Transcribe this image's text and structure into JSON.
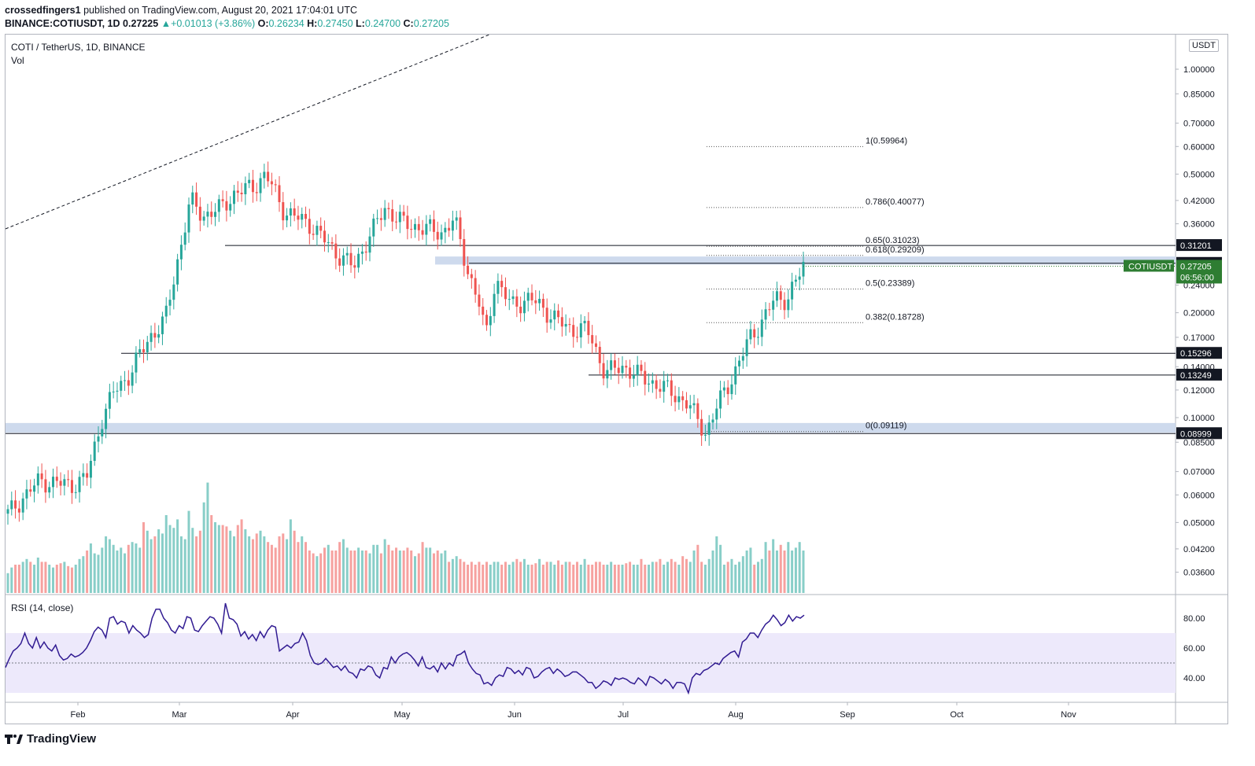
{
  "header": {
    "publisher": "crossedfingers1",
    "published_text": "published on TradingView.com, August 20, 2021 17:04:01 UTC",
    "symbol_line": "BINANCE:COTIUSDT, 1D",
    "last": "0.27225",
    "change": "+0.01013 (+3.86%)",
    "o_label": "O:",
    "o": "0.26234",
    "h_label": "H:",
    "h": "0.27450",
    "l_label": "L:",
    "l": "0.24700",
    "c_label": "C:",
    "c": "0.27205"
  },
  "legend": {
    "title": "COTI / TetherUS, 1D, BINANCE",
    "vol": "Vol",
    "rsi": "RSI (14, close)"
  },
  "currency_badge": "USDT",
  "footer": {
    "brand": "TradingView"
  },
  "colors": {
    "up": "#26a69a",
    "down": "#ef5350",
    "rsi_line": "#311b92",
    "zone": "#c5d3ea",
    "rsi_band": "#ede9fb",
    "price_label": "#2e7d32"
  },
  "chart_data": {
    "type": "candlestick",
    "scale": "log",
    "x_ticks": [
      "Feb",
      "Mar",
      "Apr",
      "May",
      "Jun",
      "Jul",
      "Aug",
      "Sep",
      "Oct",
      "Nov"
    ],
    "y_ticks": [
      "1.00000",
      "0.85000",
      "0.70000",
      "0.60000",
      "0.50000",
      "0.42000",
      "0.36000",
      "0.24000",
      "0.20000",
      "0.17000",
      "0.14000",
      "0.12000",
      "0.10000",
      "0.08500",
      "0.07000",
      "0.06000",
      "0.05000",
      "0.04200",
      "0.03600"
    ],
    "y_tick_values": [
      1.0,
      0.85,
      0.7,
      0.6,
      0.5,
      0.42,
      0.36,
      0.24,
      0.2,
      0.17,
      0.14,
      0.12,
      0.1,
      0.085,
      0.07,
      0.06,
      0.05,
      0.042,
      0.036
    ],
    "price_labels": [
      {
        "text": "0.31201",
        "value": 0.31201
      },
      {
        "text": "0.27727",
        "value": 0.27727
      },
      {
        "text": "0.15296",
        "value": 0.15296
      },
      {
        "text": "0.13249",
        "value": 0.13249
      },
      {
        "text": "0.08999",
        "value": 0.08999
      }
    ],
    "current": {
      "symbol": "COTIUSDT",
      "price": "0.27205",
      "value": 0.27205,
      "countdown": "06:56:00"
    },
    "fib_levels": [
      {
        "label": "1(0.59964)",
        "value": 0.59964
      },
      {
        "label": "0.786(0.40077)",
        "value": 0.40077
      },
      {
        "label": "0.65(0.31023)",
        "value": 0.31023
      },
      {
        "label": "0.618(0.29209)",
        "value": 0.29209
      },
      {
        "label": "0.5(0.23389)",
        "value": 0.23389
      },
      {
        "label": "0.382(0.18728)",
        "value": 0.18728
      },
      {
        "label": "0(0.09119)",
        "value": 0.09119
      }
    ],
    "support_resistance": [
      0.31201,
      0.27727,
      0.15296,
      0.13249,
      0.08999
    ],
    "zones": [
      [
        0.275,
        0.29
      ],
      [
        0.0905,
        0.0965
      ]
    ],
    "rsi": {
      "ticks": [
        "80.00",
        "60.00",
        "40.00"
      ],
      "tick_values": [
        80,
        60,
        40
      ],
      "band": [
        30,
        70
      ],
      "mid": 50,
      "range": [
        25,
        92
      ],
      "values": [
        47,
        53,
        58,
        60,
        63,
        70,
        63,
        60,
        67,
        60,
        64,
        60,
        58,
        62,
        55,
        52,
        53,
        56,
        54,
        55,
        57,
        60,
        65,
        71,
        74,
        72,
        67,
        80,
        81,
        76,
        78,
        77,
        70,
        75,
        72,
        70,
        67,
        69,
        80,
        86,
        86,
        80,
        77,
        72,
        70,
        75,
        73,
        81,
        80,
        72,
        71,
        75,
        78,
        81,
        80,
        76,
        70,
        90,
        80,
        79,
        76,
        68,
        71,
        66,
        69,
        65,
        71,
        67,
        72,
        75,
        74,
        58,
        60,
        62,
        60,
        63,
        64,
        70,
        65,
        55,
        50,
        49,
        50,
        53,
        50,
        47,
        48,
        45,
        48,
        44,
        43,
        40,
        46,
        45,
        48,
        47,
        42,
        40,
        47,
        46,
        54,
        50,
        54,
        56,
        57,
        55,
        52,
        48,
        54,
        47,
        46,
        48,
        44,
        50,
        46,
        50,
        48,
        55,
        56,
        58,
        50,
        46,
        43,
        42,
        36,
        37,
        35,
        40,
        42,
        41,
        47,
        46,
        43,
        45,
        42,
        47,
        46,
        40,
        41,
        44,
        46,
        47,
        43,
        46,
        44,
        41,
        42,
        44,
        44,
        42,
        40,
        37,
        37,
        33,
        35,
        38,
        37,
        35,
        40,
        39,
        40,
        39,
        37,
        36,
        40,
        38,
        35,
        41,
        40,
        38,
        36,
        39,
        37,
        33,
        37,
        37,
        36,
        30,
        40,
        43,
        42,
        45,
        46,
        48,
        50,
        49,
        53,
        55,
        57,
        58,
        54,
        64,
        66,
        70,
        70,
        67,
        72,
        76,
        78,
        82,
        79,
        75,
        77,
        82,
        78,
        81,
        80,
        82
      ]
    },
    "volume": [
      14,
      18,
      20,
      20,
      22,
      24,
      22,
      20,
      25,
      22,
      22,
      20,
      18,
      20,
      21,
      22,
      19,
      18,
      20,
      24,
      26,
      30,
      35,
      28,
      27,
      32,
      40,
      38,
      34,
      30,
      32,
      28,
      34,
      36,
      35,
      32,
      50,
      44,
      38,
      40,
      45,
      42,
      55,
      48,
      46,
      52,
      40,
      38,
      58,
      46,
      40,
      44,
      64,
      78,
      55,
      50,
      48,
      48,
      47,
      44,
      40,
      48,
      52,
      45,
      40,
      38,
      42,
      44,
      40,
      36,
      34,
      32,
      40,
      42,
      38,
      52,
      44,
      36,
      40,
      36,
      30,
      28,
      26,
      28,
      32,
      34,
      30,
      30,
      36,
      38,
      32,
      30,
      30,
      32,
      30,
      30,
      28,
      34,
      34,
      28,
      38,
      34,
      30,
      32,
      30,
      30,
      32,
      30,
      26,
      28,
      36,
      32,
      32,
      28,
      30,
      28,
      30,
      22,
      24,
      26,
      24,
      22,
      20,
      22,
      20,
      22,
      20,
      22,
      20,
      22,
      22,
      20,
      22,
      20,
      22,
      24,
      22,
      24,
      20,
      20,
      21,
      24,
      20,
      22,
      22,
      20,
      23,
      20,
      22,
      22,
      20,
      22,
      20,
      24,
      20,
      20,
      22,
      22,
      20,
      20,
      22,
      20,
      20,
      20,
      21,
      22,
      20,
      20,
      24,
      20,
      20,
      22,
      22,
      24,
      20,
      22,
      24,
      22,
      20,
      26,
      24,
      22,
      30,
      34,
      22,
      20,
      24,
      30,
      40,
      34,
      20,
      22,
      24,
      20,
      22,
      26,
      30,
      32,
      20,
      22,
      24,
      36,
      30,
      38,
      30,
      34,
      30,
      36,
      30,
      32,
      36,
      30
    ],
    "volume_range": [
      0,
      100
    ]
  }
}
